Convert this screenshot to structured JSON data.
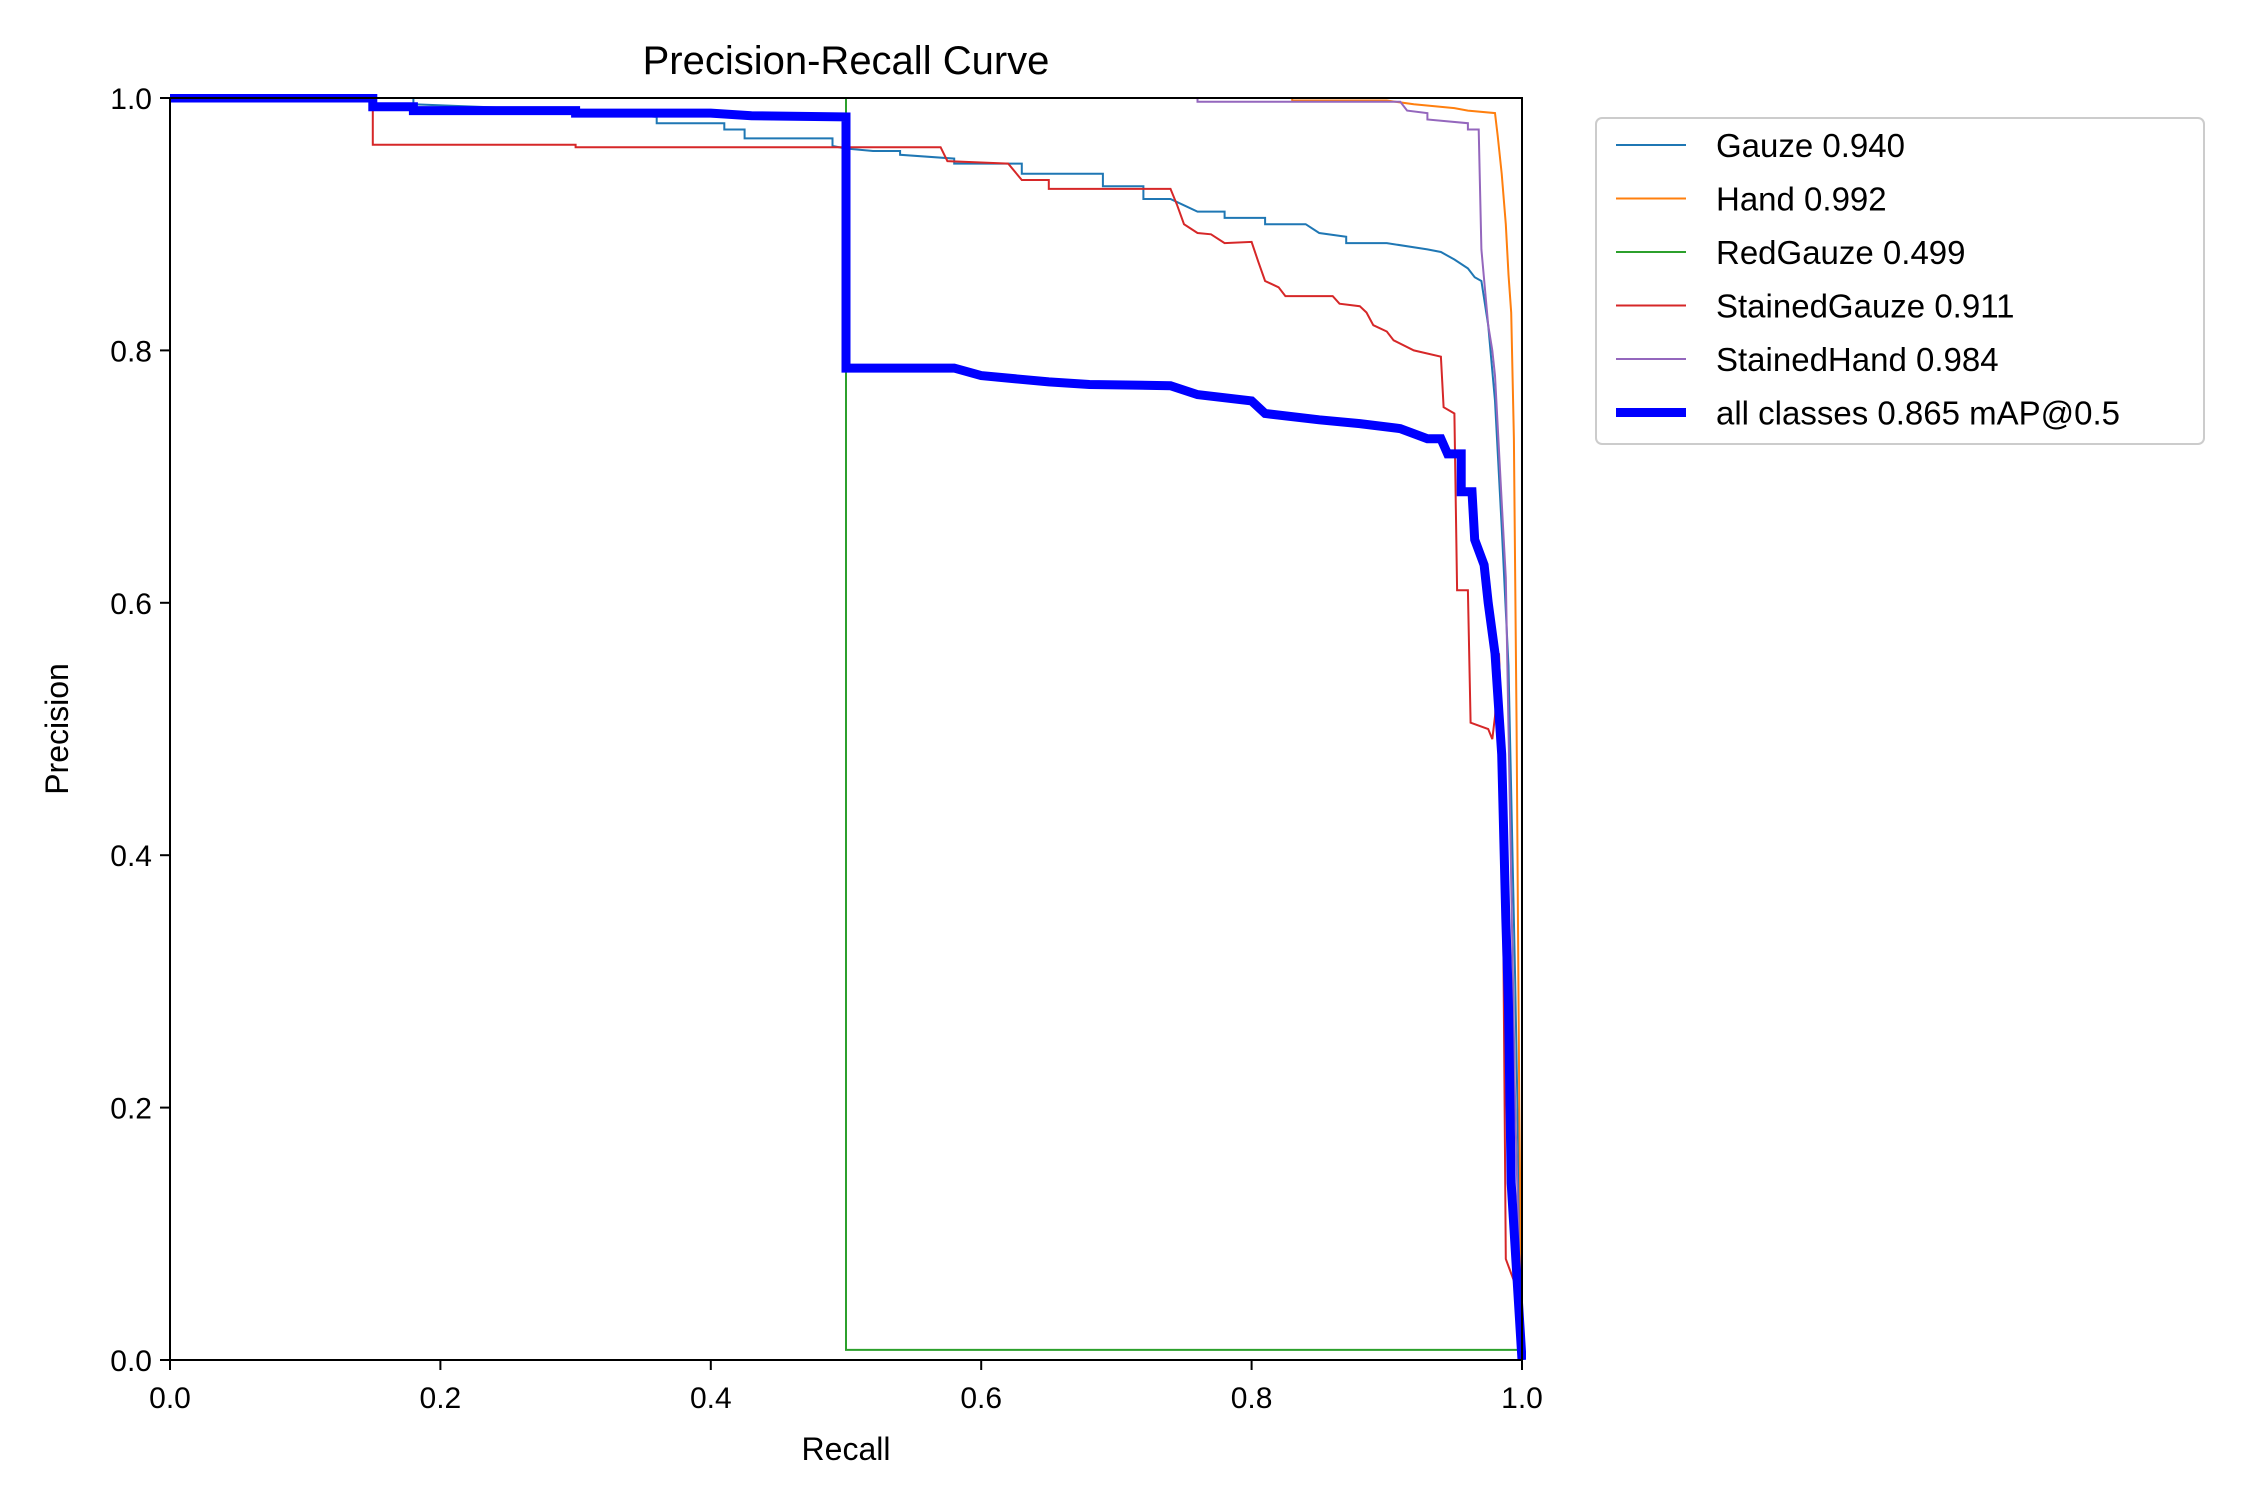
{
  "chart_data": {
    "type": "line",
    "title": "Precision-Recall Curve",
    "xlabel": "Recall",
    "ylabel": "Precision",
    "xlim": [
      0,
      1
    ],
    "ylim": [
      0,
      1
    ],
    "xticks": [
      "0.0",
      "0.2",
      "0.4",
      "0.6",
      "0.8",
      "1.0"
    ],
    "yticks": [
      "0.0",
      "0.2",
      "0.4",
      "0.6",
      "0.8",
      "1.0"
    ],
    "grid": false,
    "legend_position": "outside-top-right",
    "series": [
      {
        "name": "Gauze 0.940",
        "color": "#1f77b4",
        "width": "thin",
        "points": [
          [
            0,
            1
          ],
          [
            0.18,
            1
          ],
          [
            0.18,
            0.995
          ],
          [
            0.3,
            0.99
          ],
          [
            0.36,
            0.985
          ],
          [
            0.36,
            0.98
          ],
          [
            0.41,
            0.98
          ],
          [
            0.41,
            0.975
          ],
          [
            0.425,
            0.975
          ],
          [
            0.425,
            0.968
          ],
          [
            0.49,
            0.968
          ],
          [
            0.49,
            0.962
          ],
          [
            0.5,
            0.96
          ],
          [
            0.52,
            0.958
          ],
          [
            0.54,
            0.958
          ],
          [
            0.54,
            0.955
          ],
          [
            0.58,
            0.952
          ],
          [
            0.58,
            0.948
          ],
          [
            0.63,
            0.948
          ],
          [
            0.63,
            0.94
          ],
          [
            0.69,
            0.94
          ],
          [
            0.69,
            0.93
          ],
          [
            0.72,
            0.93
          ],
          [
            0.72,
            0.92
          ],
          [
            0.74,
            0.92
          ],
          [
            0.75,
            0.915
          ],
          [
            0.76,
            0.91
          ],
          [
            0.78,
            0.91
          ],
          [
            0.78,
            0.905
          ],
          [
            0.81,
            0.905
          ],
          [
            0.81,
            0.9
          ],
          [
            0.84,
            0.9
          ],
          [
            0.85,
            0.893
          ],
          [
            0.87,
            0.89
          ],
          [
            0.87,
            0.885
          ],
          [
            0.9,
            0.885
          ],
          [
            0.93,
            0.88
          ],
          [
            0.94,
            0.878
          ],
          [
            0.95,
            0.872
          ],
          [
            0.96,
            0.865
          ],
          [
            0.965,
            0.858
          ],
          [
            0.97,
            0.855
          ],
          [
            0.975,
            0.82
          ],
          [
            0.98,
            0.76
          ],
          [
            0.985,
            0.66
          ],
          [
            0.99,
            0.55
          ],
          [
            0.995,
            0.3
          ],
          [
            1,
            0
          ]
        ]
      },
      {
        "name": "Hand 0.992",
        "color": "#ff7f0e",
        "width": "thin",
        "points": [
          [
            0,
            1
          ],
          [
            0.83,
            1
          ],
          [
            0.83,
            0.998
          ],
          [
            0.9,
            0.998
          ],
          [
            0.92,
            0.995
          ],
          [
            0.95,
            0.992
          ],
          [
            0.96,
            0.99
          ],
          [
            0.98,
            0.988
          ],
          [
            0.982,
            0.97
          ],
          [
            0.985,
            0.94
          ],
          [
            0.988,
            0.9
          ],
          [
            0.99,
            0.86
          ],
          [
            0.992,
            0.83
          ],
          [
            0.994,
            0.73
          ],
          [
            0.996,
            0.5
          ],
          [
            0.998,
            0.2
          ],
          [
            1,
            0
          ]
        ]
      },
      {
        "name": "RedGauze 0.499",
        "color": "#2ca02c",
        "width": "thin",
        "points": [
          [
            0,
            1
          ],
          [
            0.5,
            1
          ],
          [
            0.5,
            0.008
          ],
          [
            1,
            0.008
          ],
          [
            1,
            0
          ]
        ]
      },
      {
        "name": "StainedGauze 0.911",
        "color": "#d62728",
        "width": "thin",
        "points": [
          [
            0,
            1
          ],
          [
            0.15,
            1
          ],
          [
            0.15,
            0.963
          ],
          [
            0.3,
            0.963
          ],
          [
            0.3,
            0.961
          ],
          [
            0.57,
            0.961
          ],
          [
            0.575,
            0.95
          ],
          [
            0.62,
            0.948
          ],
          [
            0.63,
            0.935
          ],
          [
            0.65,
            0.935
          ],
          [
            0.65,
            0.928
          ],
          [
            0.74,
            0.928
          ],
          [
            0.745,
            0.915
          ],
          [
            0.75,
            0.9
          ],
          [
            0.76,
            0.893
          ],
          [
            0.77,
            0.892
          ],
          [
            0.78,
            0.885
          ],
          [
            0.8,
            0.886
          ],
          [
            0.805,
            0.87
          ],
          [
            0.81,
            0.855
          ],
          [
            0.82,
            0.85
          ],
          [
            0.825,
            0.843
          ],
          [
            0.86,
            0.843
          ],
          [
            0.865,
            0.837
          ],
          [
            0.88,
            0.835
          ],
          [
            0.885,
            0.83
          ],
          [
            0.89,
            0.82
          ],
          [
            0.9,
            0.815
          ],
          [
            0.905,
            0.808
          ],
          [
            0.92,
            0.8
          ],
          [
            0.94,
            0.795
          ],
          [
            0.942,
            0.755
          ],
          [
            0.95,
            0.75
          ],
          [
            0.952,
            0.61
          ],
          [
            0.96,
            0.61
          ],
          [
            0.962,
            0.505
          ],
          [
            0.975,
            0.5
          ],
          [
            0.978,
            0.492
          ],
          [
            0.98,
            0.51
          ],
          [
            0.983,
            0.56
          ],
          [
            0.985,
            0.5
          ],
          [
            0.988,
            0.08
          ],
          [
            0.995,
            0.06
          ],
          [
            1,
            0
          ]
        ]
      },
      {
        "name": "StainedHand 0.984",
        "color": "#9467bd",
        "width": "thin",
        "points": [
          [
            0,
            1
          ],
          [
            0.76,
            1
          ],
          [
            0.76,
            0.997
          ],
          [
            0.91,
            0.997
          ],
          [
            0.915,
            0.99
          ],
          [
            0.93,
            0.988
          ],
          [
            0.93,
            0.983
          ],
          [
            0.96,
            0.98
          ],
          [
            0.96,
            0.975
          ],
          [
            0.968,
            0.975
          ],
          [
            0.97,
            0.88
          ],
          [
            0.975,
            0.82
          ],
          [
            0.978,
            0.8
          ],
          [
            0.98,
            0.78
          ],
          [
            0.982,
            0.74
          ],
          [
            0.985,
            0.68
          ],
          [
            0.988,
            0.62
          ],
          [
            0.99,
            0.5
          ],
          [
            0.995,
            0.2
          ],
          [
            1,
            0
          ]
        ]
      },
      {
        "name": "all classes 0.865 mAP@0.5",
        "color": "#0000ff",
        "width": "thick",
        "points": [
          [
            0,
            1
          ],
          [
            0.15,
            1
          ],
          [
            0.15,
            0.993
          ],
          [
            0.18,
            0.993
          ],
          [
            0.18,
            0.99
          ],
          [
            0.3,
            0.99
          ],
          [
            0.3,
            0.988
          ],
          [
            0.4,
            0.988
          ],
          [
            0.43,
            0.986
          ],
          [
            0.5,
            0.985
          ],
          [
            0.5,
            0.786
          ],
          [
            0.58,
            0.786
          ],
          [
            0.6,
            0.78
          ],
          [
            0.65,
            0.775
          ],
          [
            0.68,
            0.773
          ],
          [
            0.74,
            0.772
          ],
          [
            0.76,
            0.765
          ],
          [
            0.8,
            0.76
          ],
          [
            0.81,
            0.75
          ],
          [
            0.85,
            0.745
          ],
          [
            0.88,
            0.742
          ],
          [
            0.91,
            0.738
          ],
          [
            0.93,
            0.73
          ],
          [
            0.94,
            0.73
          ],
          [
            0.945,
            0.718
          ],
          [
            0.955,
            0.718
          ],
          [
            0.955,
            0.688
          ],
          [
            0.963,
            0.688
          ],
          [
            0.965,
            0.65
          ],
          [
            0.972,
            0.63
          ],
          [
            0.975,
            0.6
          ],
          [
            0.98,
            0.56
          ],
          [
            0.985,
            0.48
          ],
          [
            0.988,
            0.35
          ],
          [
            0.99,
            0.28
          ],
          [
            0.992,
            0.14
          ],
          [
            1,
            0
          ]
        ]
      }
    ]
  }
}
